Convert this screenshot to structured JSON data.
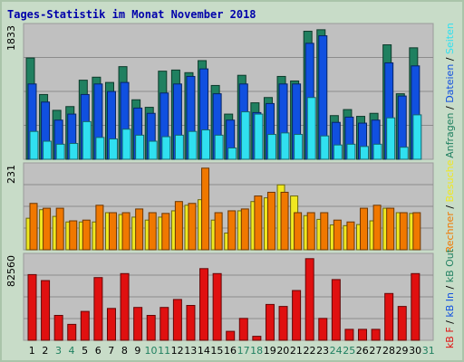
{
  "title": "Tages-Statistik im Monat November 2018",
  "colors": {
    "background": "#c8dcc8",
    "panel": "#c0c0c0",
    "anfragen": "#208060",
    "dateien": "#1050e0",
    "seiten": "#30e0f0",
    "rechner": "#f07800",
    "besuche": "#f0e820",
    "kb": "#e01010",
    "title": "#0000aa",
    "weekend_label": "#208060"
  },
  "chart_data": [
    {
      "type": "bar",
      "panel": "top",
      "ymax_label": "1833",
      "categories": [
        "1",
        "2",
        "3",
        "4",
        "5",
        "6",
        "7",
        "8",
        "9",
        "10",
        "11",
        "12",
        "13",
        "14",
        "15",
        "16",
        "17",
        "18",
        "19",
        "20",
        "21",
        "22",
        "23",
        "24",
        "25",
        "26",
        "27",
        "28",
        "29",
        "30",
        "31"
      ],
      "series": [
        {
          "name": "Anfragen",
          "values": [
            1345,
            860,
            650,
            700,
            1050,
            1090,
            1020,
            1230,
            790,
            690,
            1170,
            1185,
            1150,
            1310,
            980,
            600,
            1115,
            750,
            820,
            1100,
            1040,
            1700,
            1720,
            580,
            660,
            570,
            610,
            1520,
            870,
            1480,
            0
          ]
        },
        {
          "name": "Dateien",
          "values": [
            1000,
            760,
            520,
            600,
            860,
            1000,
            900,
            1020,
            680,
            610,
            880,
            1000,
            1100,
            1200,
            870,
            520,
            1000,
            620,
            740,
            1000,
            1000,
            1540,
            1640,
            490,
            560,
            480,
            520,
            1280,
            840,
            1240,
            0
          ]
        },
        {
          "name": "Seiten",
          "values": [
            370,
            240,
            200,
            210,
            500,
            290,
            270,
            400,
            320,
            240,
            300,
            320,
            370,
            390,
            320,
            150,
            630,
            600,
            330,
            350,
            330,
            820,
            310,
            190,
            200,
            170,
            200,
            550,
            160,
            590,
            0
          ]
        }
      ],
      "legend": [
        "Anfragen",
        "Dateien",
        "Seiten"
      ]
    },
    {
      "type": "bar",
      "panel": "middle",
      "ymax_label": "231",
      "categories": [
        "1",
        "2",
        "3",
        "4",
        "5",
        "6",
        "7",
        "8",
        "9",
        "10",
        "11",
        "12",
        "13",
        "14",
        "15",
        "16",
        "17",
        "18",
        "19",
        "20",
        "21",
        "22",
        "23",
        "24",
        "25",
        "26",
        "27",
        "28",
        "29",
        "30",
        "31"
      ],
      "series": [
        {
          "name": "Besuche",
          "values": [
            85,
            108,
            90,
            75,
            75,
            75,
            100,
            95,
            88,
            80,
            88,
            105,
            120,
            135,
            80,
            45,
            105,
            130,
            140,
            175,
            145,
            92,
            82,
            67,
            65,
            68,
            78,
            112,
            100,
            98,
            0
          ]
        },
        {
          "name": "Rechner",
          "values": [
            125,
            112,
            112,
            78,
            80,
            120,
            100,
            100,
            110,
            100,
            98,
            130,
            125,
            220,
            100,
            105,
            110,
            145,
            155,
            155,
            100,
            100,
            100,
            80,
            75,
            112,
            120,
            112,
            100,
            100,
            0
          ]
        }
      ],
      "legend": [
        "Rechner",
        "Besuche"
      ]
    },
    {
      "type": "bar",
      "panel": "bottom",
      "ymax_label": "82560",
      "categories": [
        "1",
        "2",
        "3",
        "4",
        "5",
        "6",
        "7",
        "8",
        "9",
        "10",
        "11",
        "12",
        "13",
        "14",
        "15",
        "16",
        "17",
        "18",
        "19",
        "20",
        "21",
        "22",
        "23",
        "24",
        "25",
        "26",
        "27",
        "28",
        "29",
        "30",
        "31"
      ],
      "series": [
        {
          "name": "kB F",
          "values": [
            66000,
            60000,
            25000,
            16000,
            29000,
            63000,
            32000,
            67000,
            33000,
            25000,
            33000,
            41000,
            35000,
            72000,
            67000,
            9000,
            22000,
            4000,
            36000,
            34000,
            50000,
            82000,
            22000,
            61000,
            11000,
            11000,
            11000,
            47000,
            34000,
            67000,
            0
          ]
        }
      ],
      "legend": [
        "kB F",
        "kB In",
        "kB Out"
      ]
    }
  ],
  "x_labels": [
    "1",
    "2",
    "3",
    "4",
    "5",
    "6",
    "7",
    "8",
    "9",
    "10",
    "11",
    "12",
    "13",
    "14",
    "15",
    "16",
    "17",
    "18",
    "19",
    "20",
    "21",
    "22",
    "23",
    "24",
    "25",
    "26",
    "27",
    "28",
    "29",
    "30",
    "31"
  ],
  "weekend_days": [
    "3",
    "4",
    "10",
    "11",
    "17",
    "18",
    "24",
    "25",
    "31"
  ],
  "side_legend": {
    "top_parts": [
      {
        "text": "Anfragen",
        "color": "#208060"
      },
      {
        "text": " / ",
        "color": "#000000"
      },
      {
        "text": "Dateien",
        "color": "#1050e0"
      },
      {
        "text": " / ",
        "color": "#000000"
      },
      {
        "text": "Seiten",
        "color": "#30e0f0"
      }
    ],
    "middle_parts": [
      {
        "text": "Rechner",
        "color": "#f07800"
      },
      {
        "text": " / ",
        "color": "#000000"
      },
      {
        "text": "Besuche",
        "color": "#f0e820"
      }
    ],
    "bottom_parts": [
      {
        "text": "kB F",
        "color": "#e01010"
      },
      {
        "text": " / ",
        "color": "#000000"
      },
      {
        "text": "kB In",
        "color": "#1050e0"
      },
      {
        "text": " / ",
        "color": "#000000"
      },
      {
        "text": "kB Out",
        "color": "#208060"
      }
    ]
  }
}
